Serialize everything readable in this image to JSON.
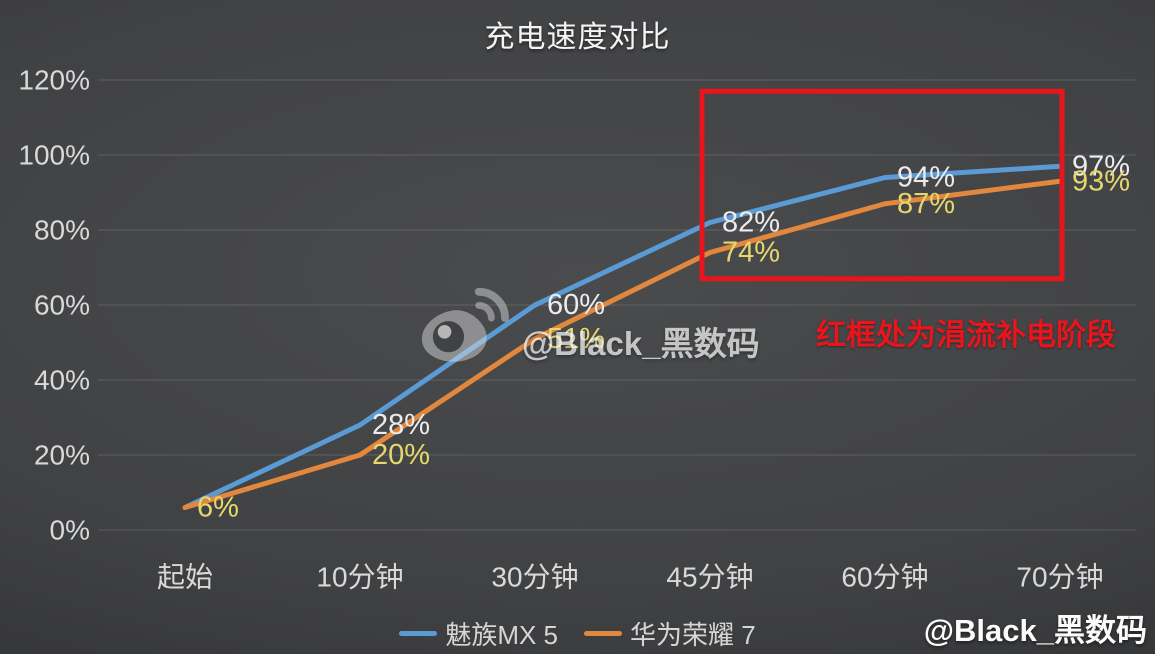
{
  "title": "充电速度对比",
  "chart_data": {
    "type": "line",
    "categories": [
      "起始",
      "10分钟",
      "30分钟",
      "45分钟",
      "60分钟",
      "70分钟"
    ],
    "y_axis": {
      "tick_labels": [
        "0%",
        "20%",
        "40%",
        "60%",
        "80%",
        "100%",
        "120%"
      ],
      "min": 0,
      "max": 120,
      "step": 20
    },
    "grid": true,
    "legend_position": "bottom-center",
    "series": [
      {
        "name": "魅族MX 5",
        "color": "#5b9bd5",
        "label_color": "#ececec",
        "values": [
          6,
          28,
          60,
          82,
          94,
          97
        ],
        "point_labels": [
          "",
          "28%",
          "60%",
          "82%",
          "94%",
          "97%"
        ]
      },
      {
        "name": "华为荣耀 7",
        "color": "#e2873e",
        "label_color": "#e6d76d",
        "values": [
          6,
          20,
          51,
          74,
          87,
          93
        ],
        "point_labels": [
          "6%",
          "20%",
          "51%",
          "74%",
          "87%",
          "93%"
        ]
      }
    ],
    "annotation": {
      "text": "红框处为涓流补电阶段",
      "text_color": "#e9151d",
      "box": {
        "from_category": "45分钟",
        "to_category": "70分钟",
        "y_min": 67,
        "y_max": 117,
        "color": "#e9151d"
      }
    }
  },
  "watermark": {
    "icon": "weibo-icon",
    "center_text": "@Black_黑数码",
    "corner_text": "@Black_黑数码"
  },
  "colors": {
    "background_center": "#48494b",
    "background_edge": "#2b2c2e",
    "axis_text": "#d9d9d9",
    "gridline": "rgba(255,255,255,0.14)"
  }
}
